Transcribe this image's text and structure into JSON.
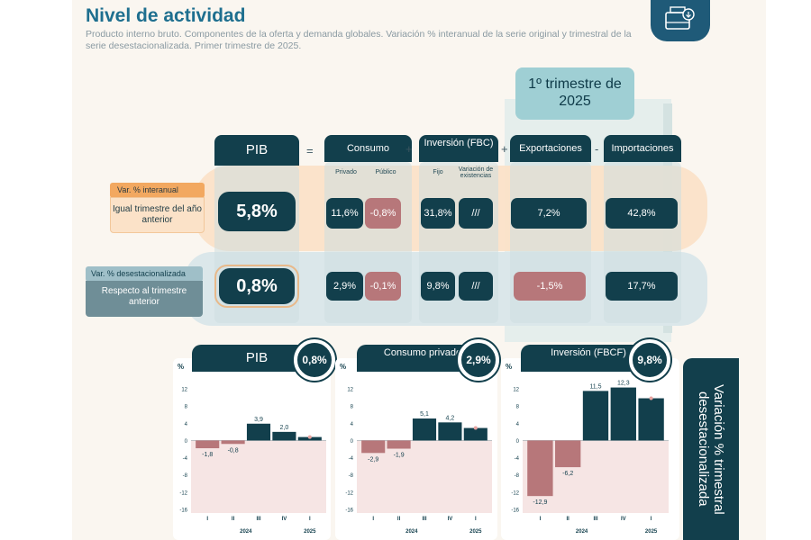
{
  "header": {
    "title": "Nivel de actividad",
    "subtitle": "Producto interno bruto. Componentes de la oferta y demanda globales. Variación % interanual de la serie original y trimestral de la serie desestacionalizada. Primer trimestre de 2025.",
    "logo_icon": "wallet-icon"
  },
  "quarter_badge": "1º trimestre de 2025",
  "components": {
    "pib": "PIB",
    "consumo": "Consumo",
    "consumo_privado": "Privado",
    "consumo_publico": "Público",
    "inversion": "Inversión (FBC)",
    "inversion_fijo": "Fijo",
    "inversion_existencias": "Variación de existencias",
    "exportaciones": "Exportaciones",
    "importaciones": "Importaciones"
  },
  "operators": {
    "eq": "=",
    "plus1": "+",
    "plus2": "+",
    "minus": "-"
  },
  "rows": {
    "interanual": {
      "tag": "Var. % interanual",
      "desc": "Igual trimestre del año anterior",
      "pib": "5,8%",
      "privado": "11,6%",
      "publico": "-0,8%",
      "fijo": "31,8%",
      "existencias": "///",
      "exportaciones": "7,2%",
      "importaciones": "42,8%"
    },
    "desestacionalizada": {
      "tag": "Var. % desestacionalizada",
      "desc": "Respecto al trimestre anterior",
      "pib": "0,8%",
      "privado": "2,9%",
      "publico": "-0,1%",
      "fijo": "9,8%",
      "existencias": "///",
      "exportaciones": "-1,5%",
      "importaciones": "17,7%"
    }
  },
  "side_label": "Variación % trimestral desestacionalizada",
  "colors": {
    "navy": "#123f4c",
    "negative": "#b7777a",
    "orange": "#f2a860",
    "teal": "#9fcfd4"
  },
  "chart_data": [
    {
      "type": "bar",
      "title": "PIB",
      "highlight": "0,8%",
      "unit": "%",
      "categories": [
        "I",
        "II",
        "III",
        "IV",
        "I"
      ],
      "years": [
        "2024",
        "2025"
      ],
      "values": [
        -1.8,
        -0.8,
        3.9,
        2.0,
        0.8
      ],
      "value_labels": [
        "-1,8",
        "-0,8",
        "3,9",
        "2,0",
        ""
      ],
      "ylim": [
        -16,
        12
      ],
      "yticks": [
        12,
        8,
        4,
        0,
        -4,
        -8,
        -12,
        -16
      ]
    },
    {
      "type": "bar",
      "title": "Consumo privado",
      "highlight": "2,9%",
      "unit": "%",
      "categories": [
        "I",
        "II",
        "III",
        "IV",
        "I"
      ],
      "years": [
        "2024",
        "2025"
      ],
      "values": [
        -2.9,
        -1.9,
        5.1,
        4.2,
        2.9
      ],
      "value_labels": [
        "-2,9",
        "-1,9",
        "5,1",
        "4,2",
        ""
      ],
      "ylim": [
        -16,
        12
      ],
      "yticks": [
        12,
        8,
        4,
        0,
        -4,
        -8,
        -12,
        -16
      ]
    },
    {
      "type": "bar",
      "title": "Inversión (FBCF)",
      "highlight": "9,8%",
      "unit": "%",
      "categories": [
        "I",
        "II",
        "III",
        "IV",
        "I"
      ],
      "years": [
        "2024",
        "2025"
      ],
      "values": [
        -12.9,
        -6.2,
        11.5,
        12.3,
        9.8
      ],
      "value_labels": [
        "-12,9",
        "-6,2",
        "11,5",
        "12,3",
        ""
      ],
      "ylim": [
        -16,
        12
      ],
      "yticks": [
        12,
        8,
        4,
        0,
        -4,
        -8,
        -12,
        -16
      ]
    }
  ]
}
